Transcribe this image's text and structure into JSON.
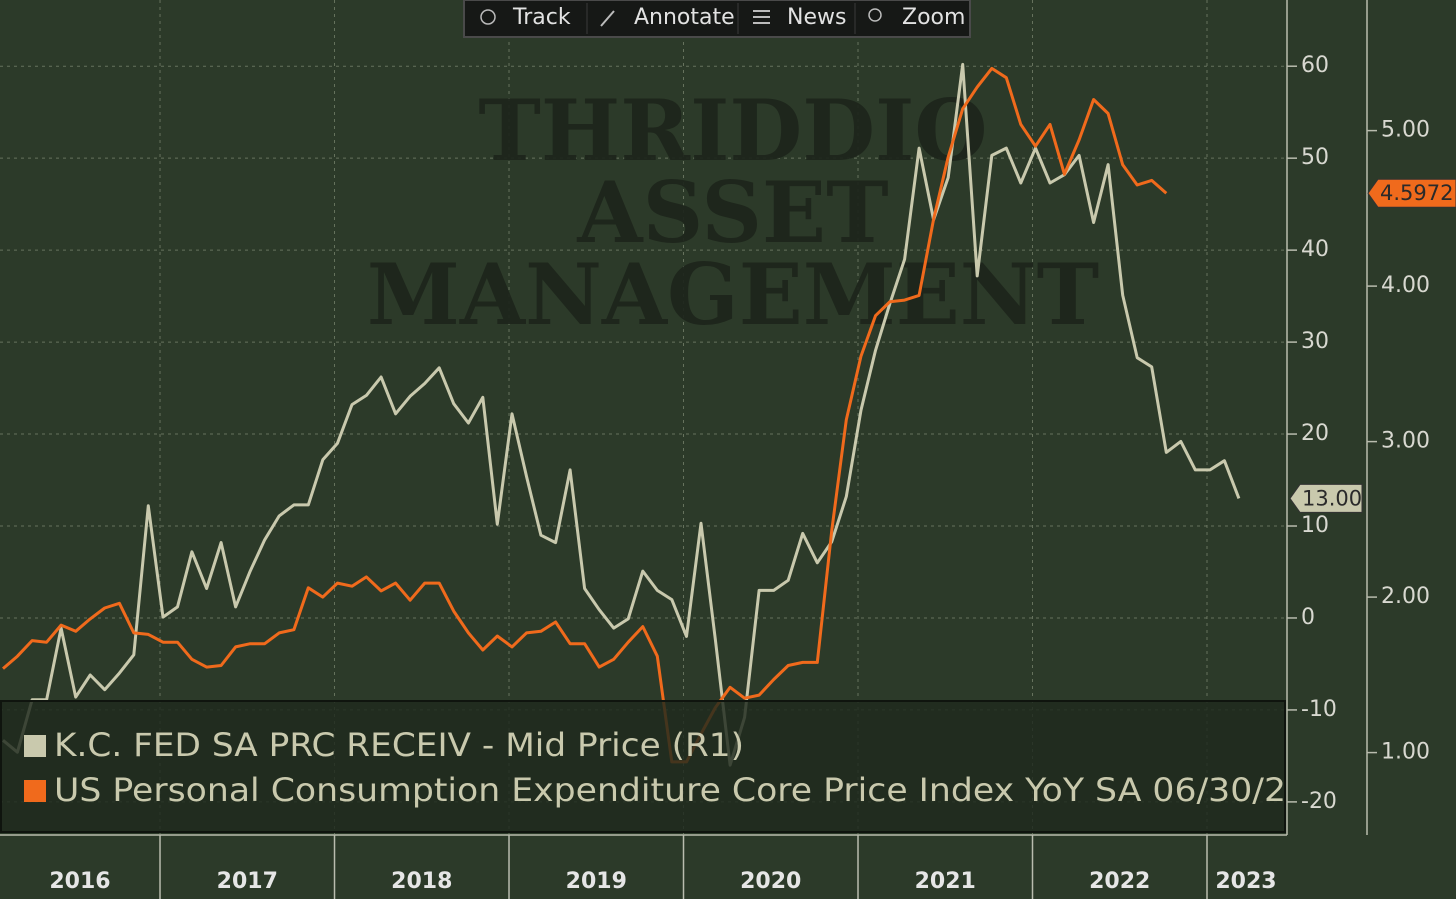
{
  "toolbar": [
    "Track",
    "Annotate",
    "News",
    "Zoom"
  ],
  "watermark": [
    "THRIDDIO",
    "ASSET",
    "MANAGEMENT"
  ],
  "chart_data": {
    "type": "line",
    "xlim": [
      2016.083,
      2023.447
    ],
    "xticks": [
      {
        "value": 2016,
        "label": "2016"
      },
      {
        "value": 2017,
        "label": "2017"
      },
      {
        "value": 2018,
        "label": "2018"
      },
      {
        "value": 2019,
        "label": "2019"
      },
      {
        "value": 2020,
        "label": "2020"
      },
      {
        "value": 2021,
        "label": "2021"
      },
      {
        "value": 2022,
        "label": "2022"
      },
      {
        "value": 2023,
        "label": "2023"
      }
    ],
    "ylim": [
      -23.6,
      67.2
    ],
    "yticks": [
      -20,
      -10,
      0,
      10,
      20,
      30,
      40,
      50,
      60
    ],
    "y2lim": [
      0.47,
      5.84
    ],
    "y2ticks": [
      {
        "value": 1,
        "label": "1.00"
      },
      {
        "value": 2,
        "label": "2.00"
      },
      {
        "value": 3,
        "label": "3.00"
      },
      {
        "value": 4,
        "label": "4.00"
      },
      {
        "value": 5,
        "label": "5.00"
      }
    ],
    "grid": true,
    "x": [
      2016.1,
      2016.183,
      2016.267,
      2016.35,
      2016.433,
      2016.517,
      2016.6,
      2016.683,
      2016.767,
      2016.85,
      2016.933,
      2017.017,
      2017.1,
      2017.183,
      2017.267,
      2017.35,
      2017.433,
      2017.517,
      2017.6,
      2017.683,
      2017.767,
      2017.85,
      2017.933,
      2018.017,
      2018.1,
      2018.183,
      2018.267,
      2018.35,
      2018.433,
      2018.517,
      2018.6,
      2018.683,
      2018.767,
      2018.85,
      2018.933,
      2019.017,
      2019.1,
      2019.183,
      2019.267,
      2019.35,
      2019.433,
      2019.517,
      2019.6,
      2019.683,
      2019.767,
      2019.85,
      2019.933,
      2020.017,
      2020.1,
      2020.183,
      2020.267,
      2020.35,
      2020.433,
      2020.517,
      2020.6,
      2020.683,
      2020.767,
      2020.85,
      2020.933,
      2021.017,
      2021.1,
      2021.183,
      2021.267,
      2021.35,
      2021.433,
      2021.517,
      2021.6,
      2021.683,
      2021.767,
      2021.85,
      2021.933,
      2022.017,
      2022.1,
      2022.183,
      2022.267,
      2022.35,
      2022.433,
      2022.517,
      2022.6,
      2022.683,
      2022.767,
      2022.85,
      2022.933,
      2023.017,
      2023.1,
      2023.183
    ],
    "series": [
      {
        "name": "K.C. FED SA PRC RECEIV - Mid Price (R1)",
        "color": "#c9c9ad",
        "axis": "y",
        "values": [
          -13.3,
          -14.6,
          -8.9,
          -8.9,
          -1.1,
          -8.6,
          -6.2,
          -7.8,
          -6.0,
          -4.0,
          12.2,
          0.1,
          1.2,
          7.2,
          3.2,
          8.2,
          1.2,
          5.1,
          8.5,
          11.1,
          12.3,
          12.3,
          17.2,
          19.0,
          23.2,
          24.2,
          26.2,
          22.2,
          24.1,
          25.5,
          27.2,
          23.3,
          21.2,
          24.0,
          10.2,
          22.2,
          15.4,
          9.0,
          8.2,
          16.1,
          3.2,
          0.9,
          -1.1,
          -0.1,
          5.1,
          3.0,
          2.0,
          -2.0,
          10.3,
          -2.4,
          -16.0,
          -10.8,
          3.0,
          3.0,
          4.1,
          9.2,
          6.0,
          8.3,
          13.2,
          22.6,
          29.1,
          34.2,
          39.0,
          51.1,
          43.3,
          47.9,
          60.2,
          37.2,
          50.3,
          51.1,
          47.3,
          51.1,
          47.3,
          48.2,
          50.3,
          43.0,
          49.3,
          35.1,
          28.3,
          27.3,
          18.0,
          19.2,
          16.1,
          16.1,
          17.1,
          13
        ],
        "value_labels": [
          null,
          null,
          null,
          null,
          null,
          null,
          null,
          null,
          null,
          null,
          null,
          null,
          null,
          null,
          null,
          null,
          null,
          null,
          null,
          null,
          null,
          null,
          null,
          null,
          null,
          null,
          null,
          null,
          null,
          null,
          null,
          null,
          null,
          null,
          null,
          null,
          null,
          null,
          null,
          null,
          null,
          null,
          null,
          null,
          null,
          null,
          null,
          null,
          null,
          null,
          null,
          null,
          null,
          null,
          null,
          null,
          null,
          null,
          null,
          null,
          null,
          null,
          null,
          null,
          null,
          null,
          null,
          null,
          null,
          null,
          null,
          null,
          null,
          null,
          null,
          null,
          null,
          null,
          null,
          null,
          null,
          null,
          null,
          null,
          null,
          "13.00"
        ]
      },
      {
        "name": "US Personal Consumption Expenditure Core Price Index YoY SA 06/30/2",
        "color": "#f06a1c",
        "axis": "y2",
        "values": [
          1.54,
          1.62,
          1.72,
          1.71,
          1.82,
          1.78,
          1.86,
          1.93,
          1.96,
          1.77,
          1.76,
          1.71,
          1.71,
          1.6,
          1.55,
          1.56,
          1.68,
          1.7,
          1.7,
          1.77,
          1.79,
          2.06,
          2.0,
          2.09,
          2.07,
          2.13,
          2.04,
          2.09,
          1.98,
          2.09,
          2.09,
          1.91,
          1.77,
          1.66,
          1.75,
          1.68,
          1.77,
          1.78,
          1.84,
          1.7,
          1.7,
          1.55,
          1.6,
          1.71,
          1.81,
          1.62,
          0.94,
          0.94,
          1.12,
          1.29,
          1.42,
          1.35,
          1.37,
          1.47,
          1.56,
          1.58,
          1.58,
          2.43,
          3.14,
          3.55,
          3.81,
          3.9,
          3.91,
          3.94,
          4.43,
          4.83,
          5.14,
          5.28,
          5.4,
          5.34,
          5.04,
          4.9,
          5.04,
          4.72,
          4.94,
          5.2,
          5.11,
          4.78,
          4.65,
          4.68,
          4.5972,
          null,
          null,
          null,
          null,
          null
        ],
        "value_labels": [
          null,
          null,
          null,
          null,
          null,
          null,
          null,
          null,
          null,
          null,
          null,
          null,
          null,
          null,
          null,
          null,
          null,
          null,
          null,
          null,
          null,
          null,
          null,
          null,
          null,
          null,
          null,
          null,
          null,
          null,
          null,
          null,
          null,
          null,
          null,
          null,
          null,
          null,
          null,
          null,
          null,
          null,
          null,
          null,
          null,
          null,
          null,
          null,
          null,
          null,
          null,
          null,
          null,
          null,
          null,
          null,
          null,
          null,
          null,
          null,
          null,
          null,
          null,
          null,
          null,
          null,
          null,
          null,
          null,
          null,
          null,
          null,
          null,
          null,
          null,
          null,
          null,
          null,
          null,
          null,
          "4.5972",
          null,
          null,
          null,
          null,
          null
        ]
      }
    ]
  }
}
